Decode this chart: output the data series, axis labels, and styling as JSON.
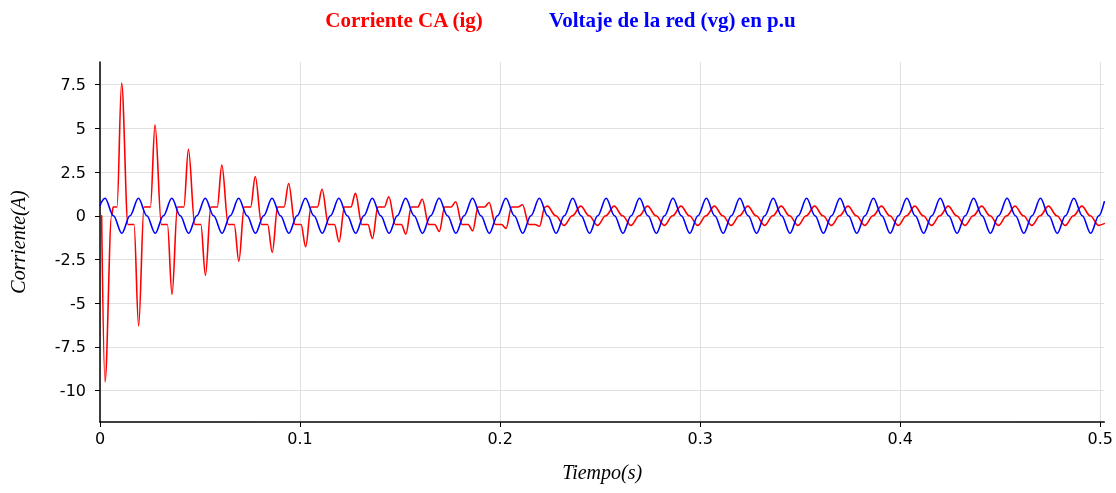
{
  "chart_data": {
    "type": "line",
    "xlabel": "Tiempo(s)",
    "ylabel": "Corriente(A)",
    "xlim": [
      0,
      0.502
    ],
    "xticks": [
      0,
      0.1,
      0.2,
      0.3,
      0.4,
      0.5
    ],
    "ylim": [
      -11.8,
      8.8
    ],
    "yticks": [
      -10,
      -7.5,
      -5,
      -2.5,
      0,
      2.5,
      5,
      7.5
    ],
    "grid": true,
    "legend": "top",
    "marker": "none",
    "line_style": "solid",
    "series": [
      {
        "name": "Corriente CA (ig)",
        "color": "#ff0000",
        "x": [
          0.0008,
          0.0025,
          0.0058,
          0.0066,
          0.0085,
          0.0108,
          0.014,
          0.017,
          0.0193,
          0.022,
          0.0252,
          0.0275,
          0.0307,
          0.0337,
          0.036,
          0.0387,
          0.0419,
          0.0442,
          0.0474,
          0.0504,
          0.0527,
          0.0554,
          0.0586,
          0.0609,
          0.0641,
          0.0671,
          0.0694,
          0.0721,
          0.0753,
          0.0776,
          0.0808,
          0.0838,
          0.0861,
          0.0888,
          0.092,
          0.0943,
          0.0975,
          0.1005,
          0.1028,
          0.1055,
          0.1087,
          0.111,
          0.1142,
          0.1172,
          0.1195,
          0.1222,
          0.1254,
          0.1277,
          0.1309,
          0.1339,
          0.1362,
          0.1389,
          0.1421,
          0.1444,
          0.1476,
          0.1506,
          0.1529,
          0.1556,
          0.1588,
          0.1611,
          0.1643,
          0.1673,
          0.1696,
          0.1723,
          0.1755,
          0.1778,
          0.181,
          0.184,
          0.1863,
          0.189,
          0.1922,
          0.1945,
          0.1977,
          0.2007,
          0.203,
          0.2057,
          0.2089,
          0.2112,
          0.2144,
          0.2174,
          0.2197,
          0.2224,
          0.2236,
          0.2278,
          0.232,
          0.2361,
          0.2403,
          0.2445,
          0.2487,
          0.2528,
          0.257,
          0.2612,
          0.2654,
          0.2695,
          0.2737,
          0.2779,
          0.2821,
          0.2862,
          0.2904,
          0.2946,
          0.2988,
          0.3029,
          0.3071,
          0.3113,
          0.3155,
          0.3196,
          0.3238,
          0.328,
          0.3322,
          0.3363,
          0.3405,
          0.3447,
          0.3489,
          0.353,
          0.3572,
          0.3614,
          0.3656,
          0.3697,
          0.3739,
          0.3781,
          0.3823,
          0.3864,
          0.3906,
          0.3948,
          0.399,
          0.4031,
          0.4073,
          0.4115,
          0.4157,
          0.4198,
          0.424,
          0.4282,
          0.4324,
          0.4365,
          0.4407,
          0.4449,
          0.4491,
          0.4532,
          0.4574,
          0.4616,
          0.4658,
          0.4699,
          0.4741,
          0.4783,
          0.4825,
          0.4866,
          0.4908,
          0.495,
          0.4992,
          0.502
        ],
        "values": [
          0,
          -9.5,
          0,
          0.5,
          0.5,
          7.6,
          -0.5,
          -0.5,
          -6.3,
          0.5,
          0.5,
          5.2,
          -0.5,
          -0.5,
          -4.5,
          0.5,
          0.5,
          3.8,
          -0.5,
          -0.5,
          -3.4,
          0.5,
          0.5,
          2.9,
          -0.5,
          -0.5,
          -2.6,
          0.5,
          0.5,
          2.25,
          -0.5,
          -0.5,
          -2.1,
          0.5,
          0.5,
          1.85,
          -0.5,
          -0.5,
          -1.77,
          0.5,
          0.5,
          1.52,
          -0.5,
          -0.5,
          -1.49,
          0.5,
          0.5,
          1.28,
          -0.5,
          -0.5,
          -1.3,
          0.5,
          0.5,
          1.09,
          -0.5,
          -0.5,
          -1.05,
          0.5,
          0.5,
          0.95,
          -0.5,
          -0.5,
          -0.9,
          0.5,
          0.5,
          0.8,
          -0.5,
          -0.5,
          -0.86,
          0.5,
          0.5,
          0.76,
          -0.5,
          -0.5,
          -0.72,
          0.5,
          0.5,
          0.63,
          -0.5,
          -0.5,
          -0.6,
          0.5,
          0.55,
          0,
          -0.55,
          0,
          0.55,
          0,
          -0.55,
          0,
          0.55,
          0,
          -0.55,
          0,
          0.55,
          0,
          -0.55,
          0,
          0.55,
          0,
          -0.55,
          0,
          0.55,
          0,
          -0.55,
          0,
          0.55,
          0,
          -0.55,
          0,
          0.55,
          0,
          -0.55,
          0,
          0.55,
          0,
          -0.55,
          0,
          0.55,
          0,
          -0.55,
          0,
          0.55,
          0,
          -0.55,
          0,
          0.55,
          0,
          -0.55,
          0,
          0.55,
          0,
          -0.55,
          0,
          0.55,
          0,
          -0.55,
          0,
          0.55,
          0,
          -0.55,
          0,
          0.55,
          0,
          -0.55,
          0,
          0.55,
          0,
          -0.55,
          -0.45
        ]
      },
      {
        "name": "Voltaje de la red (vg) en p.u",
        "color": "#0000ff",
        "x": [
          0,
          0.0025,
          0.0067,
          0.0109,
          0.015,
          0.0192,
          0.0234,
          0.0276,
          0.0317,
          0.0359,
          0.0401,
          0.0443,
          0.0484,
          0.0526,
          0.0568,
          0.061,
          0.0651,
          0.0693,
          0.0735,
          0.0777,
          0.0818,
          0.086,
          0.0902,
          0.0944,
          0.0985,
          0.1027,
          0.1069,
          0.1111,
          0.1152,
          0.1194,
          0.1236,
          0.1278,
          0.1319,
          0.1361,
          0.1403,
          0.1445,
          0.1486,
          0.1528,
          0.157,
          0.1612,
          0.1653,
          0.1695,
          0.1737,
          0.1779,
          0.182,
          0.1862,
          0.1904,
          0.1946,
          0.1987,
          0.2029,
          0.2071,
          0.2113,
          0.2154,
          0.2196,
          0.2238,
          0.228,
          0.2321,
          0.2363,
          0.2405,
          0.2447,
          0.2488,
          0.253,
          0.2572,
          0.2614,
          0.2655,
          0.2697,
          0.2739,
          0.2781,
          0.2822,
          0.2864,
          0.2906,
          0.2948,
          0.2989,
          0.3031,
          0.3073,
          0.3115,
          0.3156,
          0.3198,
          0.324,
          0.3282,
          0.3323,
          0.3365,
          0.3407,
          0.3449,
          0.349,
          0.3532,
          0.3574,
          0.3616,
          0.3657,
          0.3699,
          0.3741,
          0.3783,
          0.3824,
          0.3866,
          0.3908,
          0.395,
          0.3991,
          0.4033,
          0.4075,
          0.4117,
          0.4158,
          0.42,
          0.4242,
          0.4284,
          0.4325,
          0.4367,
          0.4409,
          0.4451,
          0.4492,
          0.4534,
          0.4576,
          0.4618,
          0.4659,
          0.4701,
          0.4743,
          0.4785,
          0.4826,
          0.4868,
          0.491,
          0.4952,
          0.4993,
          0.502
        ],
        "values": [
          0.6,
          1,
          0,
          -1,
          0,
          1,
          0,
          -1,
          0,
          1,
          0,
          -1,
          0,
          1,
          0,
          -1,
          0,
          1,
          0,
          -1,
          0,
          1,
          0,
          -1,
          0,
          1,
          0,
          -1,
          0,
          1,
          0,
          -1,
          0,
          1,
          0,
          -1,
          0,
          1,
          0,
          -1,
          0,
          1,
          0,
          -1,
          0,
          1,
          0,
          -1,
          0,
          1,
          0,
          -1,
          0,
          1,
          0,
          -1,
          0,
          1,
          0,
          -1,
          0,
          1,
          0,
          -1,
          0,
          1,
          0,
          -1,
          0,
          1,
          0,
          -1,
          0,
          1,
          0,
          -1,
          0,
          1,
          0,
          -1,
          0,
          1,
          0,
          -1,
          0,
          1,
          0,
          -1,
          0,
          1,
          0,
          -1,
          0,
          1,
          0,
          -1,
          0,
          1,
          0,
          -1,
          0,
          1,
          0,
          -1,
          0,
          1,
          0,
          -1,
          0,
          1,
          0,
          -1,
          0,
          1,
          0,
          -1,
          0,
          1,
          0,
          -1,
          0,
          0.8
        ]
      }
    ]
  }
}
